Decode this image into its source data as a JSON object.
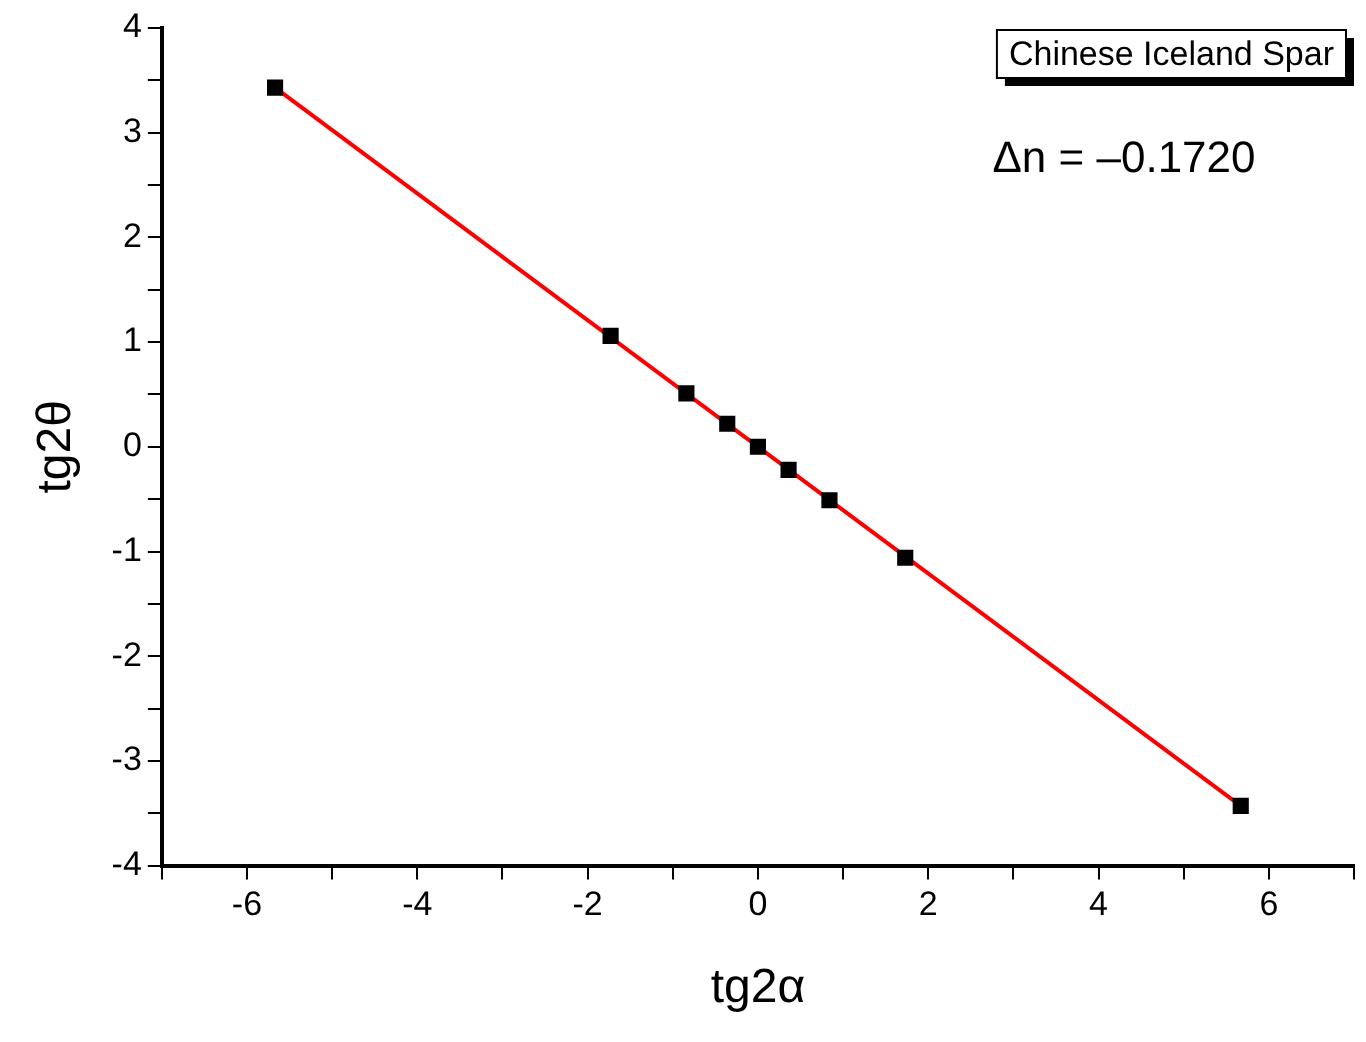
{
  "chart_data": {
    "type": "scatter",
    "xlabel": "tg2α",
    "ylabel": "tg2θ",
    "annotations": [
      "Chinese Iceland Spar",
      "Δn = –0.1720"
    ],
    "series": [
      {
        "color": "#000000",
        "marker": "square",
        "x": [
          -5.67,
          -1.73,
          -0.84,
          -0.36,
          0,
          0.36,
          0.84,
          1.73,
          5.67
        ],
        "values": [
          3.43,
          1.06,
          0.51,
          0.22,
          0,
          -0.22,
          -0.51,
          -1.06,
          -3.43
        ]
      },
      {
        "type": "line",
        "color": "#ff0000",
        "marker": "none",
        "line_style": "solid",
        "x": [
          -5.67,
          5.67
        ],
        "values": [
          3.43,
          -3.43
        ]
      }
    ],
    "xlim": [
      -7,
      7
    ],
    "ylim": [
      -4,
      4
    ],
    "xticks": [
      {
        "value": -7,
        "label": null
      },
      -6,
      {
        "value": -5,
        "label": null
      },
      -4,
      {
        "value": -3,
        "label": null
      },
      -2,
      {
        "value": -1,
        "label": null
      },
      0,
      {
        "value": 1,
        "label": null
      },
      2,
      {
        "value": 3,
        "label": null
      },
      4,
      {
        "value": 5,
        "label": null
      },
      6,
      {
        "value": 7,
        "label": null
      }
    ],
    "yticks": [
      -4,
      {
        "value": -3.5,
        "label": null
      },
      -3,
      {
        "value": -2.5,
        "label": null
      },
      -2,
      {
        "value": -1.5,
        "label": null
      },
      -1,
      {
        "value": -0.5,
        "label": null
      },
      0,
      {
        "value": 0.5,
        "label": null
      },
      1,
      {
        "value": 1.5,
        "label": null
      },
      2,
      {
        "value": 2.5,
        "label": null
      },
      3,
      {
        "value": 3.5,
        "label": null
      },
      4
    ],
    "grid": false,
    "legend": false
  }
}
